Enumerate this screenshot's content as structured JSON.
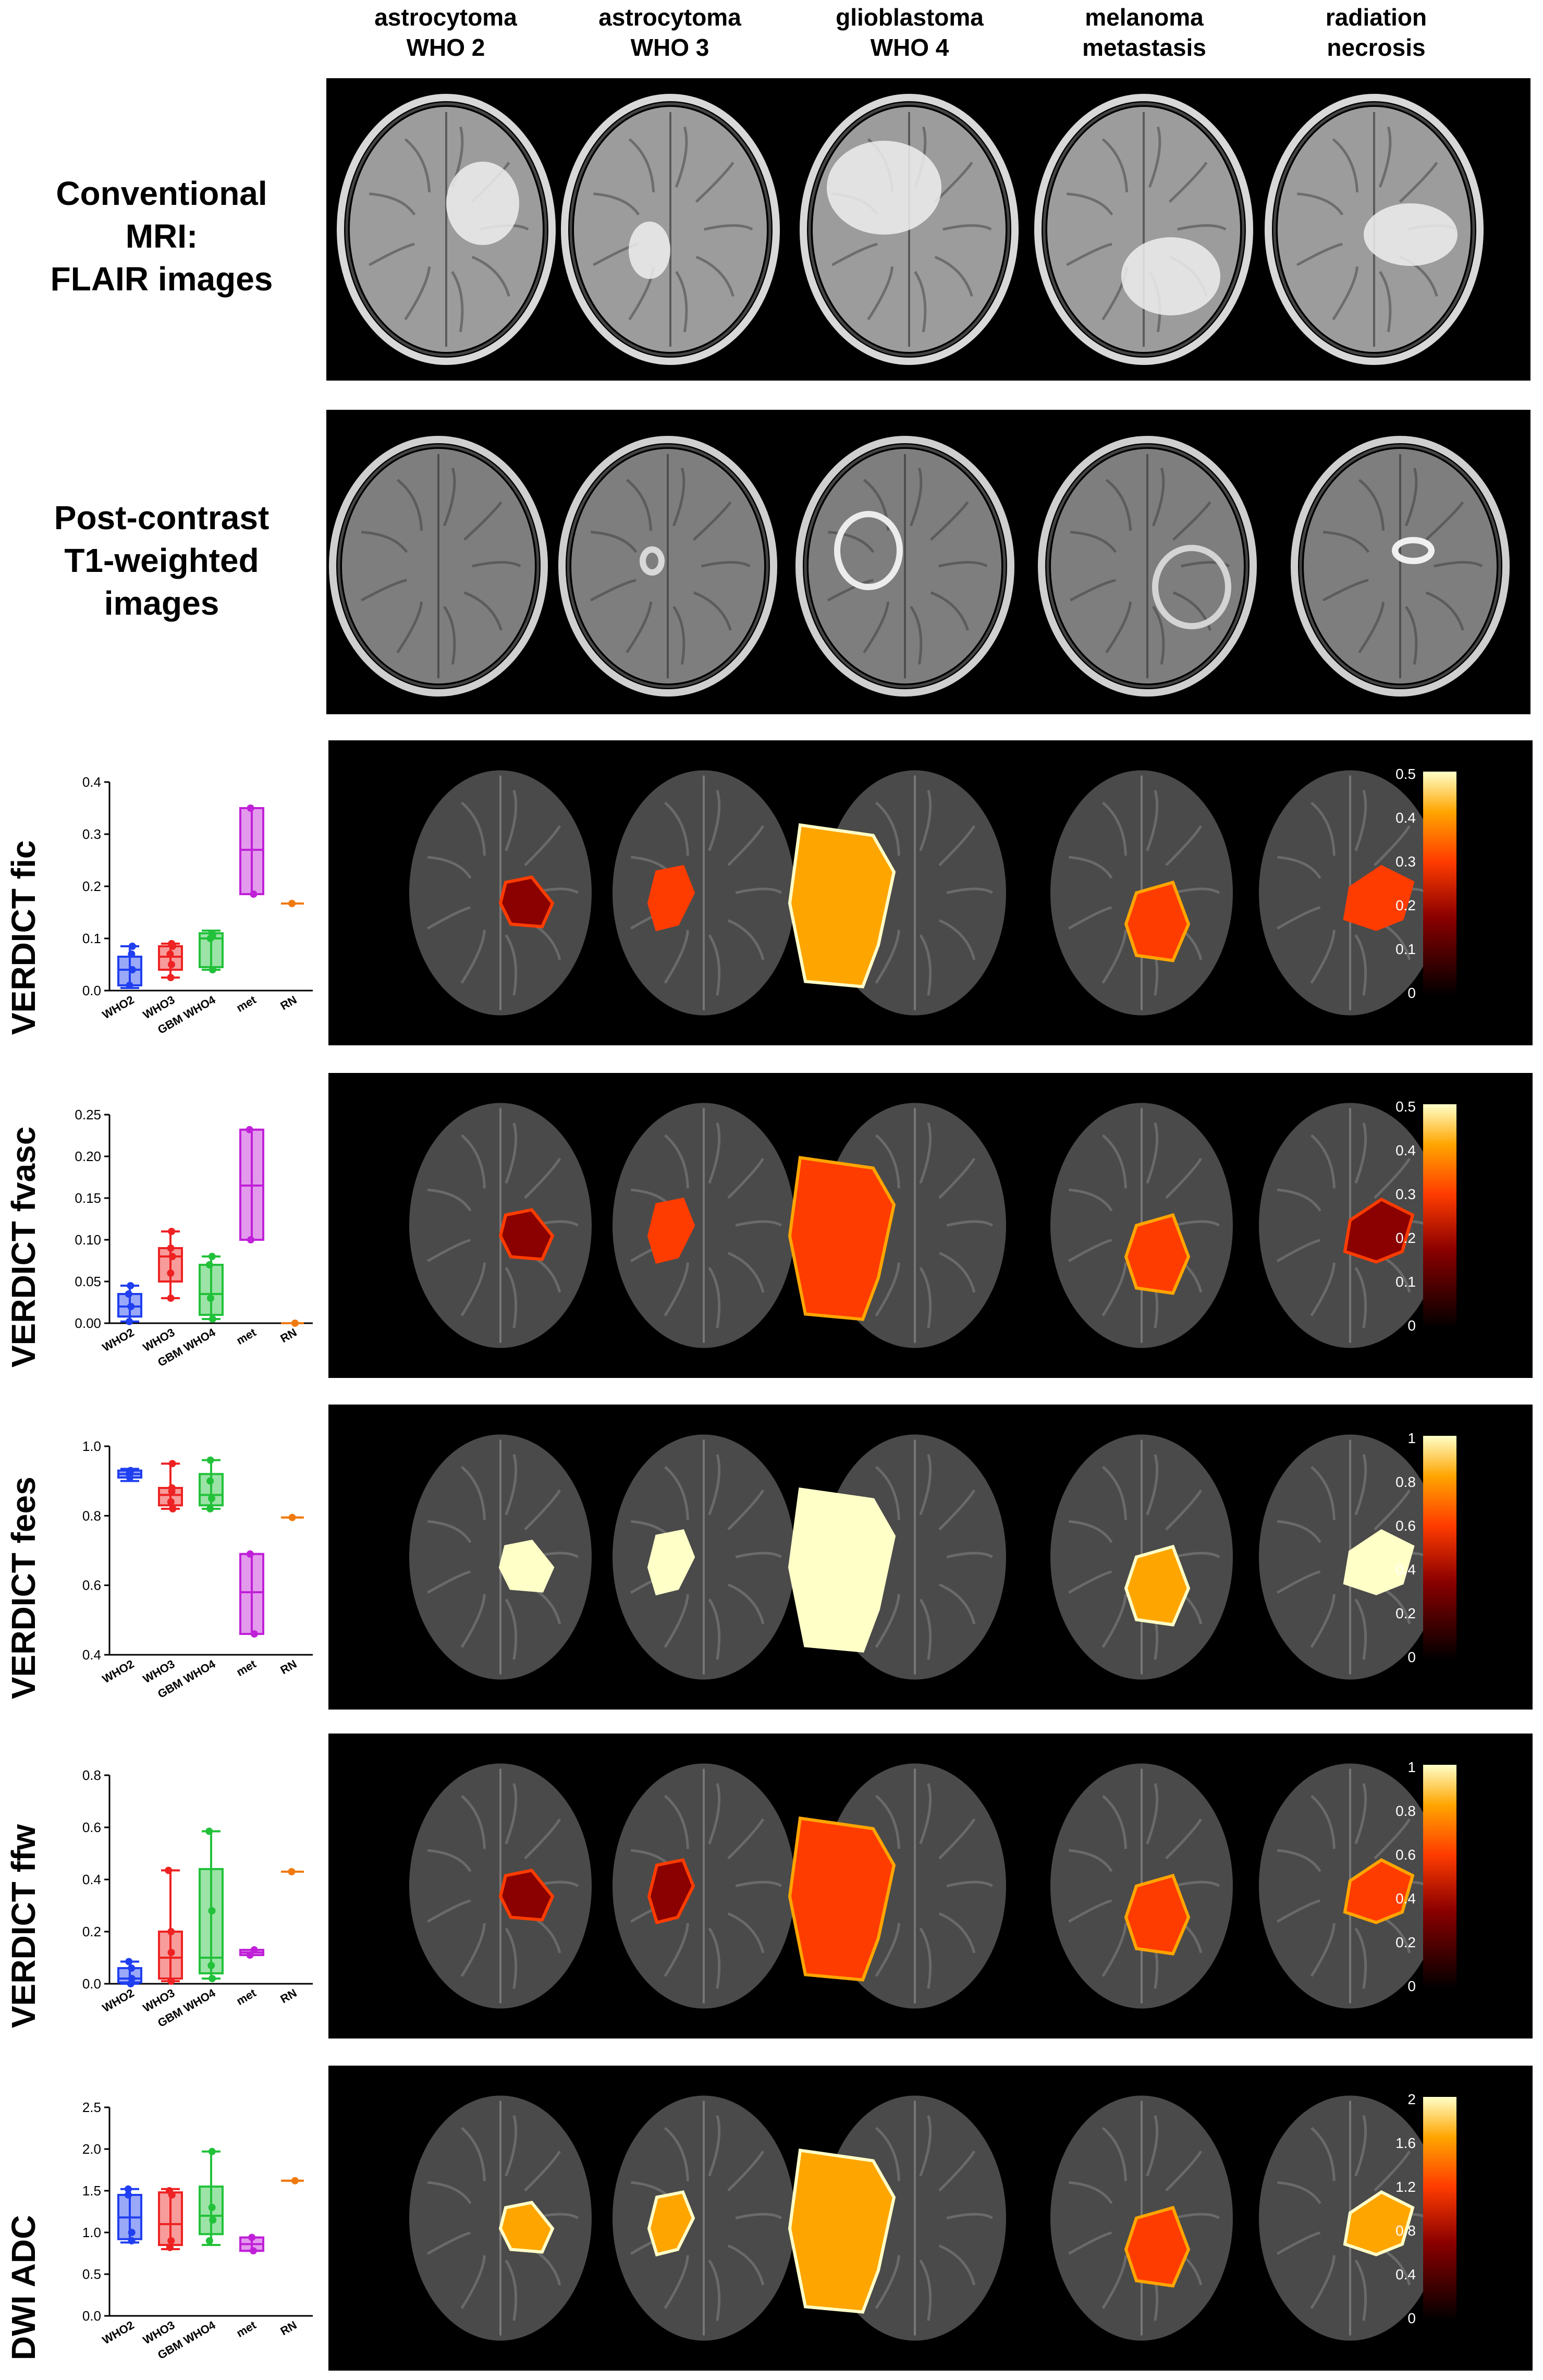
{
  "columns": [
    {
      "line1": "astrocytoma",
      "line2": "WHO 2"
    },
    {
      "line1": "astrocytoma",
      "line2": "WHO 3"
    },
    {
      "line1": "glioblastoma",
      "line2": "WHO 4"
    },
    {
      "line1": "melanoma",
      "line2": "metastasis"
    },
    {
      "line1": "radiation",
      "line2": "necrosis"
    }
  ],
  "rows": {
    "flair": {
      "line1": "Conventional",
      "line2": "MRI:",
      "line3": "FLAIR images"
    },
    "t1": {
      "line1": "Post-contrast",
      "line2": "T1-weighted",
      "line3": "images"
    }
  },
  "colors": {
    "WHO2": "#1f3ff0",
    "WHO3": "#ee2222",
    "GBM WHO4": "#22c13a",
    "met": "#c020d8",
    "RN": "#f07a10"
  },
  "chart_data": [
    {
      "type": "box",
      "ylabel": "VERDICT fic",
      "categories": [
        "WHO2",
        "WHO3",
        "GBM WHO4",
        "met",
        "RN"
      ],
      "ylim": [
        0,
        0.4
      ],
      "yticks": [
        "0.0",
        "0.1",
        "0.2",
        "0.3",
        "0.4"
      ],
      "yticks_values": [
        0,
        0.1,
        0.2,
        0.3,
        0.4
      ],
      "series": [
        {
          "min": 0.005,
          "q1": 0.01,
          "median": 0.04,
          "q3": 0.065,
          "max": 0.085,
          "points": [
            0.01,
            0.04,
            0.07,
            0.085
          ]
        },
        {
          "min": 0.025,
          "q1": 0.04,
          "median": 0.065,
          "q3": 0.085,
          "max": 0.09,
          "points": [
            0.025,
            0.05,
            0.07,
            0.085,
            0.09
          ]
        },
        {
          "min": 0.04,
          "q1": 0.045,
          "median": 0.1,
          "q3": 0.11,
          "max": 0.115,
          "points": [
            0.04,
            0.1,
            0.105,
            0.11
          ]
        },
        {
          "min": 0.185,
          "q1": 0.185,
          "median": 0.27,
          "q3": 0.35,
          "max": 0.35,
          "points": [
            0.185,
            0.35
          ]
        },
        {
          "min": 0.167,
          "q1": 0.167,
          "median": 0.167,
          "q3": 0.167,
          "max": 0.167,
          "points": [
            0.167
          ]
        }
      ],
      "colorbar": {
        "ticks": [
          "0.5",
          "0.4",
          "0.3",
          "0.2",
          "0.1",
          "0"
        ],
        "colormap": "hot"
      }
    },
    {
      "type": "box",
      "ylabel": "VERDICT fvasc",
      "categories": [
        "WHO2",
        "WHO3",
        "GBM WHO4",
        "met",
        "RN"
      ],
      "ylim": [
        0,
        0.25
      ],
      "yticks": [
        "0.00",
        "0.05",
        "0.10",
        "0.15",
        "0.20",
        "0.25"
      ],
      "yticks_values": [
        0,
        0.05,
        0.1,
        0.15,
        0.2,
        0.25
      ],
      "series": [
        {
          "min": 0.002,
          "q1": 0.008,
          "median": 0.02,
          "q3": 0.035,
          "max": 0.045,
          "points": [
            0.002,
            0.02,
            0.035,
            0.045
          ]
        },
        {
          "min": 0.03,
          "q1": 0.05,
          "median": 0.08,
          "q3": 0.09,
          "max": 0.11,
          "points": [
            0.03,
            0.06,
            0.08,
            0.09,
            0.11
          ]
        },
        {
          "min": 0.005,
          "q1": 0.01,
          "median": 0.035,
          "q3": 0.07,
          "max": 0.08,
          "points": [
            0.005,
            0.03,
            0.07,
            0.08
          ]
        },
        {
          "min": 0.1,
          "q1": 0.1,
          "median": 0.165,
          "q3": 0.232,
          "max": 0.232,
          "points": [
            0.1,
            0.232
          ]
        },
        {
          "min": 0.0,
          "q1": 0.0,
          "median": 0.0,
          "q3": 0.0,
          "max": 0.0,
          "points": [
            0.0
          ]
        }
      ],
      "colorbar": {
        "ticks": [
          "0.5",
          "0.4",
          "0.3",
          "0.2",
          "0.1",
          "0"
        ],
        "colormap": "hot"
      }
    },
    {
      "type": "box",
      "ylabel": "VERDICT fees",
      "categories": [
        "WHO2",
        "WHO3",
        "GBM WHO4",
        "met",
        "RN"
      ],
      "ylim": [
        0.4,
        1.0
      ],
      "yticks": [
        "0.4",
        "0.6",
        "0.8",
        "1.0"
      ],
      "yticks_values": [
        0.4,
        0.6,
        0.8,
        1.0
      ],
      "series": [
        {
          "min": 0.9,
          "q1": 0.91,
          "median": 0.92,
          "q3": 0.93,
          "max": 0.935,
          "points": [
            0.91,
            0.92,
            0.93
          ]
        },
        {
          "min": 0.82,
          "q1": 0.83,
          "median": 0.86,
          "q3": 0.88,
          "max": 0.95,
          "points": [
            0.82,
            0.84,
            0.87,
            0.88,
            0.95
          ]
        },
        {
          "min": 0.82,
          "q1": 0.83,
          "median": 0.86,
          "q3": 0.92,
          "max": 0.96,
          "points": [
            0.82,
            0.85,
            0.9,
            0.96
          ]
        },
        {
          "min": 0.46,
          "q1": 0.46,
          "median": 0.58,
          "q3": 0.69,
          "max": 0.69,
          "points": [
            0.46,
            0.69
          ]
        },
        {
          "min": 0.795,
          "q1": 0.795,
          "median": 0.795,
          "q3": 0.795,
          "max": 0.795,
          "points": [
            0.795
          ]
        }
      ],
      "colorbar": {
        "ticks": [
          "1",
          "0.8",
          "0.6",
          "0.4",
          "0.2",
          "0"
        ],
        "colormap": "hot"
      }
    },
    {
      "type": "box",
      "ylabel": "VERDICT ffw",
      "categories": [
        "WHO2",
        "WHO3",
        "GBM WHO4",
        "met",
        "RN"
      ],
      "ylim": [
        0,
        0.8
      ],
      "yticks": [
        "0.0",
        "0.2",
        "0.4",
        "0.6",
        "0.8"
      ],
      "yticks_values": [
        0,
        0.2,
        0.4,
        0.6,
        0.8
      ],
      "series": [
        {
          "min": 0.0,
          "q1": 0.005,
          "median": 0.02,
          "q3": 0.06,
          "max": 0.085,
          "points": [
            0.0,
            0.02,
            0.06,
            0.085
          ]
        },
        {
          "min": 0.01,
          "q1": 0.02,
          "median": 0.1,
          "q3": 0.2,
          "max": 0.435,
          "points": [
            0.01,
            0.12,
            0.2,
            0.435
          ]
        },
        {
          "min": 0.02,
          "q1": 0.04,
          "median": 0.1,
          "q3": 0.44,
          "max": 0.585,
          "points": [
            0.02,
            0.07,
            0.28,
            0.585
          ]
        },
        {
          "min": 0.11,
          "q1": 0.11,
          "median": 0.12,
          "q3": 0.13,
          "max": 0.13,
          "points": [
            0.11,
            0.13
          ]
        },
        {
          "min": 0.43,
          "q1": 0.43,
          "median": 0.43,
          "q3": 0.43,
          "max": 0.43,
          "points": [
            0.43
          ]
        }
      ],
      "colorbar": {
        "ticks": [
          "1",
          "0.8",
          "0.6",
          "0.4",
          "0.2",
          "0"
        ],
        "colormap": "hot"
      }
    },
    {
      "type": "box",
      "ylabel": "DWI ADC",
      "categories": [
        "WHO2",
        "WHO3",
        "GBM WHO4",
        "met",
        "RN"
      ],
      "ylim": [
        0,
        2.5
      ],
      "yticks": [
        "0.0",
        "0.5",
        "1.0",
        "1.5",
        "2.0",
        "2.5"
      ],
      "yticks_values": [
        0,
        0.5,
        1.0,
        1.5,
        2.0,
        2.5
      ],
      "series": [
        {
          "min": 0.88,
          "q1": 0.92,
          "median": 1.18,
          "q3": 1.45,
          "max": 1.52,
          "points": [
            0.9,
            1.0,
            1.45,
            1.52
          ]
        },
        {
          "min": 0.8,
          "q1": 0.85,
          "median": 1.1,
          "q3": 1.48,
          "max": 1.52,
          "points": [
            0.82,
            0.9,
            1.45,
            1.5
          ]
        },
        {
          "min": 0.85,
          "q1": 0.98,
          "median": 1.2,
          "q3": 1.55,
          "max": 1.97,
          "points": [
            0.9,
            1.15,
            1.3,
            1.97
          ]
        },
        {
          "min": 0.78,
          "q1": 0.78,
          "median": 0.86,
          "q3": 0.94,
          "max": 0.94,
          "points": [
            0.78,
            0.94
          ]
        },
        {
          "min": 1.62,
          "q1": 1.62,
          "median": 1.62,
          "q3": 1.62,
          "max": 1.62,
          "points": [
            1.62
          ]
        }
      ],
      "colorbar": {
        "ticks": [
          "2",
          "1.6",
          "1.2",
          "0.8",
          "0.4",
          "0"
        ],
        "colormap": "hot"
      }
    }
  ]
}
